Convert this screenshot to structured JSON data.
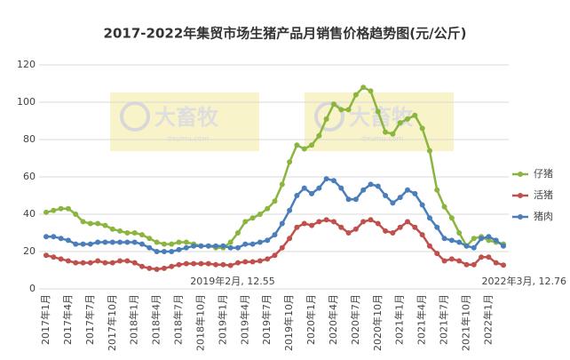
{
  "chart_data": {
    "type": "line",
    "title": "2017-2022年集贸市场生猪产品月销售价格趋势图(元/公斤)",
    "categories": [
      "2017年1月",
      null,
      null,
      "2017年4月",
      null,
      null,
      "2017年7月",
      null,
      null,
      "2017年10月",
      null,
      null,
      "2018年1月",
      null,
      null,
      "2018年4月",
      null,
      null,
      "2018年7月",
      null,
      null,
      "2018年10月",
      null,
      null,
      "2019年1月",
      null,
      null,
      "2019年4月",
      null,
      null,
      "2019年7月",
      null,
      null,
      "2019年10月",
      null,
      null,
      "2020年1月",
      null,
      null,
      "2020年4月",
      null,
      null,
      "2020年7月",
      null,
      null,
      "2020年10月",
      null,
      null,
      "2021年1月",
      null,
      null,
      "2021年4月",
      null,
      null,
      "2021年7月",
      null,
      null,
      "2021年10月",
      null,
      null,
      "2022年1月",
      null,
      null
    ],
    "series": [
      {
        "name": "仔猪",
        "color": "#8bb53f",
        "values": [
          41,
          42,
          43,
          43,
          40,
          36,
          35,
          35,
          34,
          32,
          31,
          30,
          30,
          29,
          27,
          25,
          24,
          24,
          25,
          25,
          24,
          23,
          23,
          22,
          22,
          25,
          30,
          36,
          38,
          40,
          43,
          47,
          56,
          68,
          77,
          75,
          77,
          82,
          91,
          99,
          96,
          96,
          104,
          108,
          106,
          95,
          84,
          83,
          89,
          91,
          93,
          86,
          74,
          53,
          44,
          38,
          30,
          23,
          27,
          28,
          26,
          25,
          24
        ]
      },
      {
        "name": "活猪",
        "color": "#c0504d",
        "values": [
          18,
          17,
          16,
          15,
          14,
          14,
          14,
          15,
          14,
          14,
          15,
          15,
          14,
          12,
          11,
          10.5,
          11,
          12,
          13,
          13.5,
          13.5,
          13.5,
          13.5,
          13,
          13,
          12.55,
          14,
          14.5,
          14.5,
          15,
          16,
          18,
          22,
          27,
          33,
          35,
          34,
          36,
          37,
          36,
          33,
          30,
          32,
          36,
          37,
          35,
          31,
          30,
          33,
          36,
          33,
          29,
          23,
          19,
          15,
          16,
          15,
          13,
          13,
          17,
          17,
          14,
          12.76
        ]
      },
      {
        "name": "猪肉",
        "color": "#4a7ebb",
        "values": [
          28,
          28,
          27,
          26,
          24,
          24,
          24,
          25,
          25,
          25,
          25,
          25,
          25,
          24,
          22,
          20,
          20,
          20,
          21,
          22,
          23,
          23,
          23,
          23,
          23,
          22,
          22,
          24,
          24,
          25,
          26,
          29,
          35,
          42,
          50,
          54,
          51,
          54,
          59,
          58,
          54,
          48,
          48,
          53,
          56,
          55,
          50,
          46,
          49,
          53,
          51,
          45,
          38,
          33,
          27,
          26,
          25,
          23,
          22,
          27,
          28,
          26,
          23
        ]
      }
    ],
    "ylim": [
      0,
      120
    ],
    "yticks": [
      0,
      20,
      40,
      60,
      80,
      100,
      120
    ],
    "grid": true,
    "legend": "right",
    "annotations": [
      "2019年2月, 12.55",
      "2022年3月, 12.76"
    ],
    "watermark": {
      "text": "大畜牧",
      "url": "dxumu.com"
    }
  }
}
